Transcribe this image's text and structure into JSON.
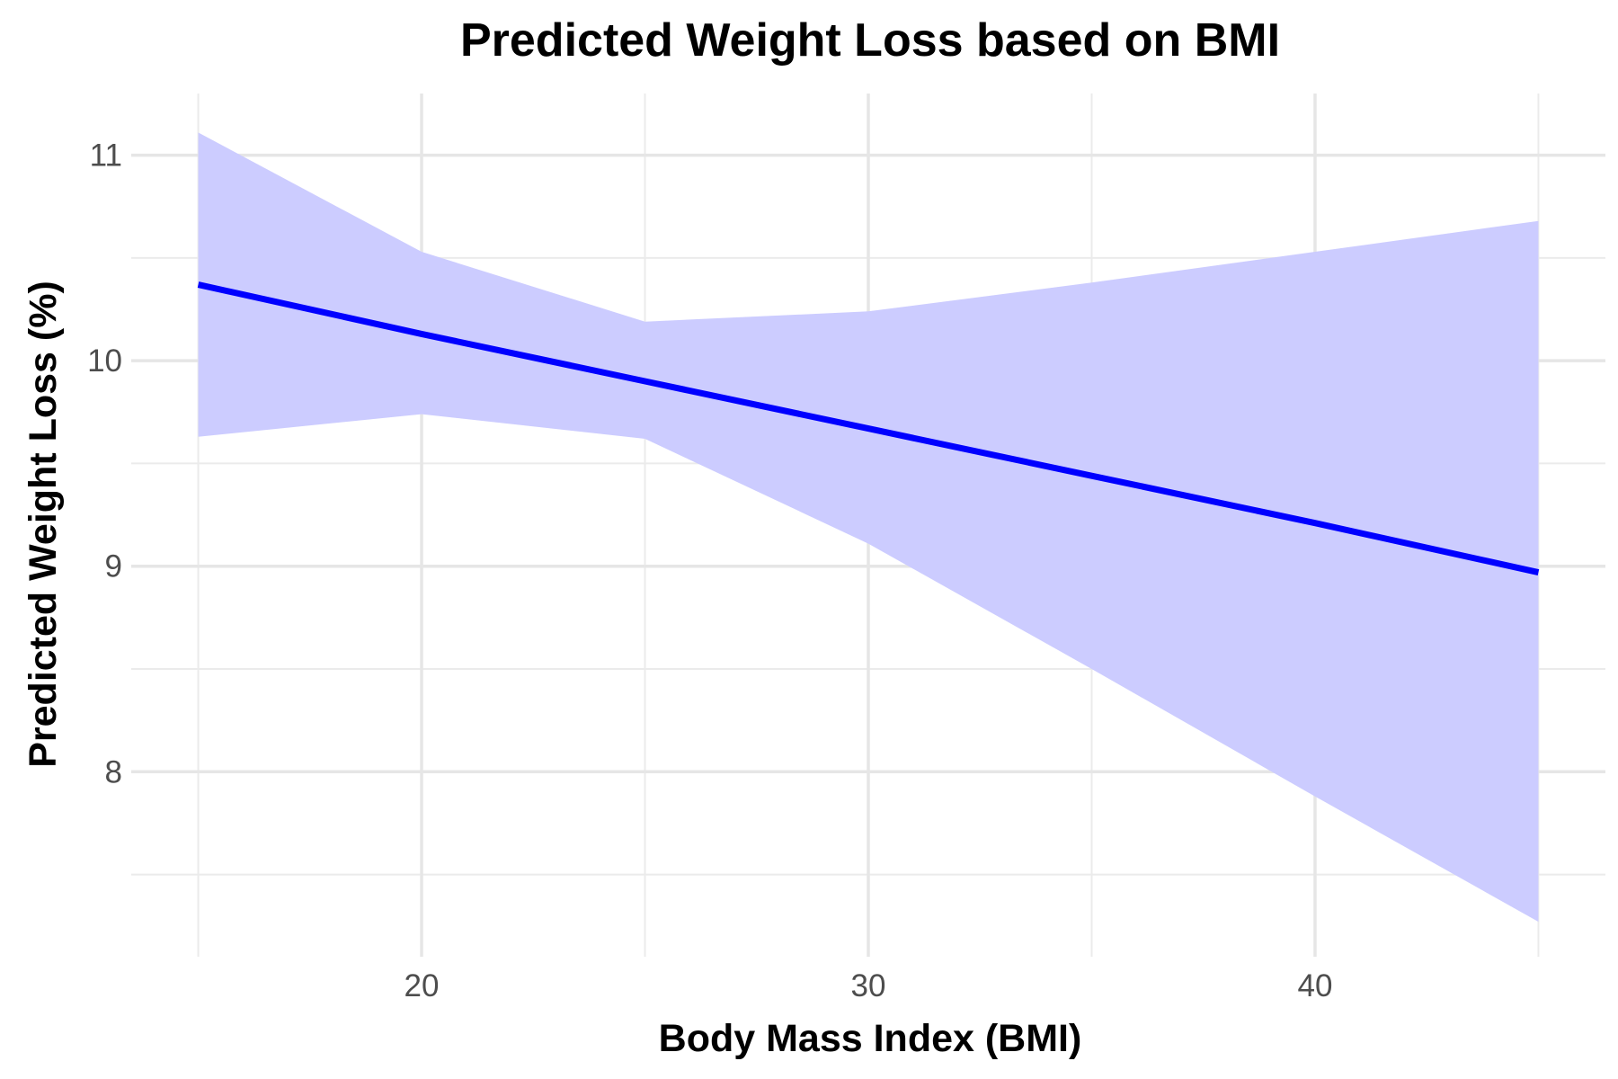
{
  "chart_data": {
    "type": "line",
    "title": "Predicted Weight Loss based on BMI",
    "xlabel": "Body Mass Index (BMI)",
    "ylabel": "Predicted Weight Loss (%)",
    "xlim": [
      13.5,
      46.5
    ],
    "ylim": [
      7.1,
      11.3
    ],
    "x_ticks": [
      20,
      30,
      40
    ],
    "y_ticks": [
      8,
      9,
      10,
      11
    ],
    "x_minor_grid": [
      15,
      25,
      35,
      45
    ],
    "y_minor_grid": [
      7.5,
      8.5,
      9.5,
      10.5
    ],
    "grid": true,
    "series": [
      {
        "x": [
          15,
          20,
          25,
          30,
          35,
          40,
          45
        ],
        "values": [
          10.37,
          10.13,
          9.9,
          9.67,
          9.44,
          9.21,
          8.97
        ],
        "lower": [
          9.63,
          9.74,
          9.62,
          9.11,
          8.5,
          7.88,
          7.27
        ],
        "upper": [
          11.11,
          10.53,
          10.19,
          10.24,
          10.38,
          10.53,
          10.68
        ],
        "color": "#0000ff",
        "band_color": "#ccccff"
      }
    ]
  }
}
